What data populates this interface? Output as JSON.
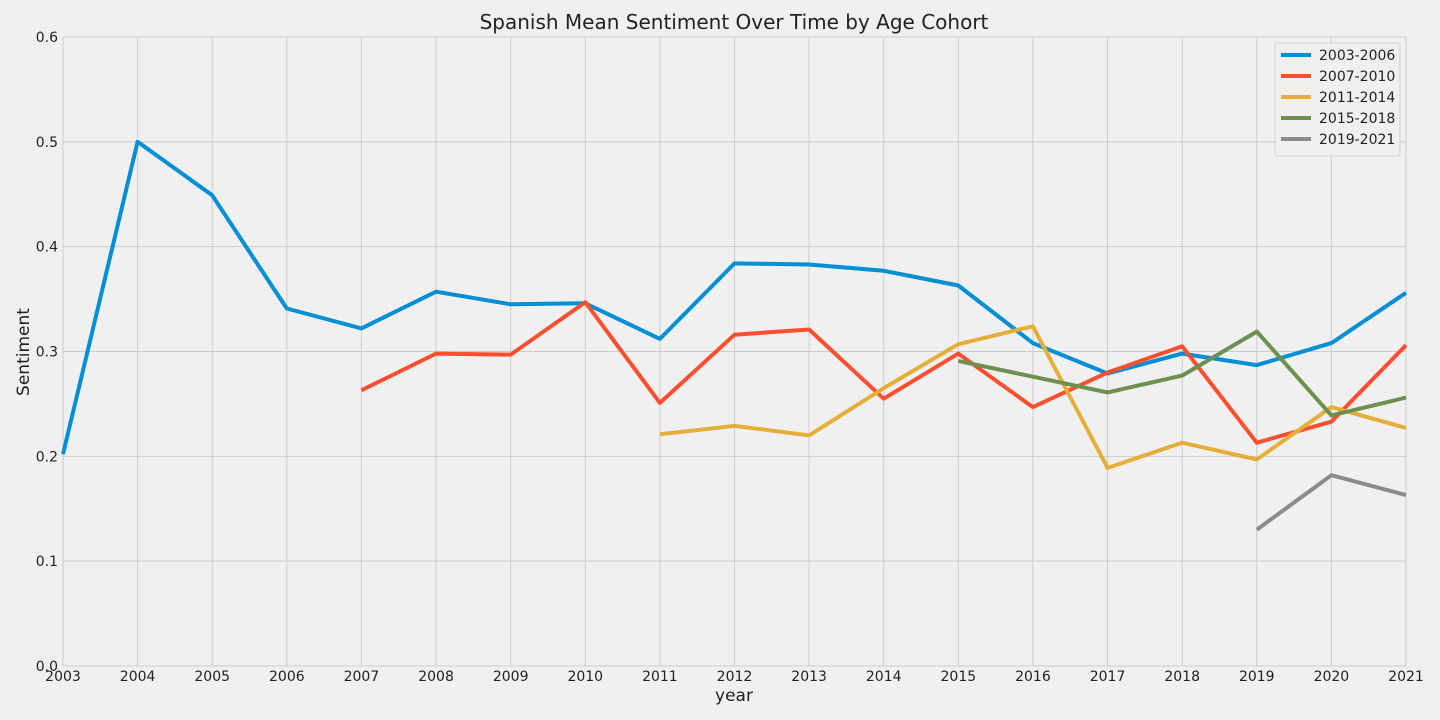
{
  "chart_data": {
    "type": "line",
    "title": "Spanish Mean Sentiment Over Time by Age Cohort",
    "xlabel": "year",
    "ylabel": "Sentiment",
    "xlim": [
      2003,
      2021
    ],
    "ylim": [
      0.0,
      0.6
    ],
    "x_ticks": [
      "2003",
      "2004",
      "2005",
      "2006",
      "2007",
      "2008",
      "2009",
      "2010",
      "2011",
      "2012",
      "2013",
      "2014",
      "2015",
      "2016",
      "2017",
      "2018",
      "2019",
      "2020",
      "2021"
    ],
    "y_ticks": [
      "0.0",
      "0.1",
      "0.2",
      "0.3",
      "0.4",
      "0.5",
      "0.6"
    ],
    "grid": true,
    "legend_position": "top-right",
    "series": [
      {
        "name": "2003-2006",
        "color": "#008fd5",
        "x": [
          2003,
          2004,
          2005,
          2006,
          2007,
          2008,
          2009,
          2010,
          2011,
          2012,
          2013,
          2014,
          2015,
          2016,
          2017,
          2018,
          2019,
          2020,
          2021
        ],
        "y": [
          0.202,
          0.5,
          0.449,
          0.341,
          0.322,
          0.357,
          0.345,
          0.346,
          0.312,
          0.384,
          0.383,
          0.377,
          0.363,
          0.308,
          0.279,
          0.298,
          0.287,
          0.308,
          0.356
        ]
      },
      {
        "name": "2007-2010",
        "color": "#fc4f30",
        "x": [
          2007,
          2008,
          2009,
          2010,
          2011,
          2012,
          2013,
          2014,
          2015,
          2016,
          2017,
          2018,
          2019,
          2020,
          2021
        ],
        "y": [
          0.263,
          0.298,
          0.297,
          0.347,
          0.251,
          0.316,
          0.321,
          0.255,
          0.298,
          0.247,
          0.28,
          0.305,
          0.213,
          0.233,
          0.306
        ]
      },
      {
        "name": "2011-2014",
        "color": "#e5ae38",
        "x": [
          2011,
          2012,
          2013,
          2014,
          2015,
          2016,
          2017,
          2018,
          2019,
          2020,
          2021
        ],
        "y": [
          0.221,
          0.229,
          0.22,
          0.265,
          0.307,
          0.324,
          0.189,
          0.213,
          0.197,
          0.247,
          0.227
        ]
      },
      {
        "name": "2015-2018",
        "color": "#6d904f",
        "x": [
          2015,
          2016,
          2017,
          2018,
          2019,
          2020,
          2021
        ],
        "y": [
          0.291,
          0.276,
          0.261,
          0.277,
          0.319,
          0.239,
          0.256
        ]
      },
      {
        "name": "2019-2021",
        "color": "#8b8b8b",
        "x": [
          2019,
          2020,
          2021
        ],
        "y": [
          0.13,
          0.182,
          0.163
        ]
      }
    ]
  }
}
